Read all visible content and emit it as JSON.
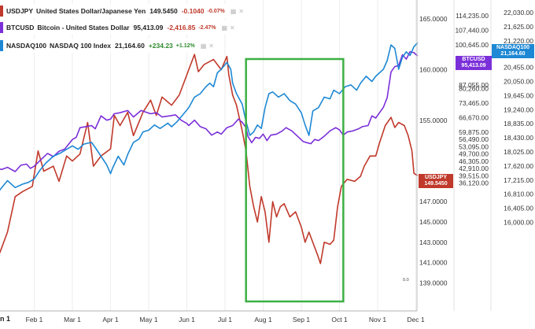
{
  "legend": [
    {
      "symbol": "USDJPY",
      "name": "United States Dollar/Japanese Yen",
      "last": "149.5450",
      "change": "-0.1040",
      "change_pct": "-0.07%",
      "color": "#c0392b"
    },
    {
      "symbol": "BTCUSD",
      "name": "Bitcoin - United States Dollar",
      "last": "95,413.09",
      "change": "-2,416.85",
      "change_pct": "-2.47%",
      "color": "#7b2fd9"
    },
    {
      "symbol": "NASDAQ100",
      "name": "NASDAQ 100 Index",
      "last": "21,164.60",
      "change": "+234.23",
      "change_pct": "+1.12%",
      "color": "#1e88d4"
    }
  ],
  "tags": {
    "btc": {
      "l1": "BTCUSD",
      "l2": "95,413.09"
    },
    "ndx": {
      "l1": "NASDAQ100",
      "l2": "21,164.60"
    },
    "usd": {
      "l1": "USDJPY",
      "l2": "149.5450"
    }
  },
  "misc": {
    "corner_label": "n 1",
    "zero_label": "0.0"
  },
  "colors": {
    "usd": "#c0392b",
    "btc": "#7b2fd9",
    "ndx": "#1e88d4",
    "box": "#3cb043"
  },
  "chart_data": {
    "type": "line",
    "x_ticks": [
      "Feb 1",
      "Mar 1",
      "Apr 1",
      "May 1",
      "Jun 1",
      "Jul 1",
      "Aug 1",
      "Sep 1",
      "Oct 1",
      "Nov 1",
      "Dec 1"
    ],
    "usdjpy_axis": {
      "ticks": [
        "165.0000",
        "160.0000",
        "155.0000",
        "147.0000",
        "145.0000",
        "143.0000",
        "141.0000",
        "139.0000"
      ]
    },
    "btc_axis": {
      "ticks": [
        "114,235.00",
        "107,440.00",
        "100,645.00",
        "80,260.00",
        "73,465.00",
        "66,670.00",
        "59,875.00",
        "56,490.00",
        "53,095.00",
        "49,700.00",
        "46,305.00",
        "42,910.00",
        "39,515.00",
        "36,120.00"
      ],
      "partial_tick": "87,055.00"
    },
    "ndx_axis": {
      "ticks": [
        "22,030.00",
        "21,625.00",
        "21,220.00",
        "20,860.00",
        "20,455.00",
        "20,050.00",
        "19,645.00",
        "19,240.00",
        "18,835.00",
        "18,430.00",
        "18,025.00",
        "17,620.00",
        "17,215.00",
        "16,810.00",
        "16,405.00",
        "16,000.00"
      ]
    },
    "series": [
      {
        "name": "USDJPY",
        "color": "#c0392b",
        "values": [
          [
            0,
            141
          ],
          [
            0.15,
            142.5
          ],
          [
            0.3,
            144
          ],
          [
            0.5,
            147.5
          ],
          [
            0.7,
            148
          ],
          [
            0.95,
            148.5
          ],
          [
            1.1,
            152
          ],
          [
            1.25,
            150
          ],
          [
            1.5,
            150.5
          ],
          [
            1.65,
            149
          ],
          [
            1.85,
            151.5
          ],
          [
            2.0,
            151
          ],
          [
            2.2,
            151.7
          ],
          [
            2.4,
            154.8
          ],
          [
            2.55,
            150.5
          ],
          [
            2.75,
            151.5
          ],
          [
            3.0,
            152.2
          ],
          [
            3.1,
            155.5
          ],
          [
            3.25,
            154.5
          ],
          [
            3.45,
            155.8
          ],
          [
            3.6,
            153.5
          ],
          [
            3.85,
            155.8
          ],
          [
            4.05,
            157
          ],
          [
            4.2,
            155.5
          ],
          [
            4.35,
            157.3
          ],
          [
            4.6,
            156.5
          ],
          [
            4.8,
            157.5
          ],
          [
            5.0,
            159.5
          ],
          [
            5.1,
            160.5
          ],
          [
            5.2,
            161.5
          ],
          [
            5.3,
            159.8
          ],
          [
            5.45,
            160.5
          ],
          [
            5.7,
            161
          ],
          [
            5.9,
            160
          ],
          [
            6.05,
            161.3
          ],
          [
            6.1,
            159.5
          ],
          [
            6.2,
            157.5
          ],
          [
            6.3,
            156.5
          ],
          [
            6.45,
            154
          ],
          [
            6.55,
            152
          ],
          [
            6.65,
            148.5
          ],
          [
            6.75,
            146.5
          ],
          [
            6.85,
            145
          ],
          [
            6.95,
            147.5
          ],
          [
            7.05,
            146
          ],
          [
            7.15,
            143
          ],
          [
            7.25,
            147
          ],
          [
            7.35,
            145.5
          ],
          [
            7.45,
            146.5
          ],
          [
            7.55,
            146.8
          ],
          [
            7.7,
            145.5
          ],
          [
            7.85,
            146
          ],
          [
            8.0,
            144.5
          ],
          [
            8.1,
            143
          ],
          [
            8.2,
            144
          ],
          [
            8.35,
            142.5
          ],
          [
            8.45,
            141.5
          ],
          [
            8.5,
            140.9
          ],
          [
            8.6,
            143
          ],
          [
            8.75,
            142.8
          ],
          [
            8.85,
            143.2
          ],
          [
            8.95,
            146.5
          ],
          [
            9.05,
            148.5
          ],
          [
            9.2,
            149.2
          ],
          [
            9.4,
            149
          ],
          [
            9.55,
            149.5
          ],
          [
            9.65,
            150.5
          ],
          [
            9.8,
            151.5
          ],
          [
            9.95,
            151.5
          ],
          [
            10.05,
            152.8
          ],
          [
            10.2,
            154.5
          ],
          [
            10.35,
            155.3
          ],
          [
            10.45,
            154.3
          ],
          [
            10.55,
            154.8
          ],
          [
            10.7,
            154.5
          ],
          [
            10.8,
            153.5
          ],
          [
            10.9,
            152
          ],
          [
            10.95,
            149.8
          ],
          [
            11.05,
            149.55
          ]
        ]
      },
      {
        "name": "BTCUSD",
        "color": "#7b2fd9",
        "values": [
          [
            0,
            43000
          ],
          [
            0.15,
            42500
          ],
          [
            0.3,
            43500
          ],
          [
            0.5,
            41500
          ],
          [
            0.65,
            44500
          ],
          [
            0.8,
            45000
          ],
          [
            0.9,
            43000
          ],
          [
            1.0,
            44000
          ],
          [
            1.2,
            47500
          ],
          [
            1.35,
            50000
          ],
          [
            1.5,
            48500
          ],
          [
            1.65,
            51000
          ],
          [
            1.8,
            52000
          ],
          [
            2.0,
            56500
          ],
          [
            2.1,
            57500
          ],
          [
            2.2,
            62000
          ],
          [
            2.35,
            62500
          ],
          [
            2.5,
            63000
          ],
          [
            2.6,
            61500
          ],
          [
            2.75,
            67500
          ],
          [
            2.9,
            65500
          ],
          [
            3.0,
            66000
          ],
          [
            3.1,
            68500
          ],
          [
            3.25,
            69000
          ],
          [
            3.45,
            70000
          ],
          [
            3.6,
            67000
          ],
          [
            3.8,
            70000
          ],
          [
            4.05,
            68500
          ],
          [
            4.2,
            69000
          ],
          [
            4.35,
            67000
          ],
          [
            4.55,
            67500
          ],
          [
            4.7,
            68000
          ],
          [
            4.85,
            65500
          ],
          [
            5.0,
            64000
          ],
          [
            5.05,
            63000
          ],
          [
            5.2,
            65500
          ],
          [
            5.35,
            62500
          ],
          [
            5.5,
            61500
          ],
          [
            5.65,
            58500
          ],
          [
            5.8,
            60000
          ],
          [
            5.9,
            59000
          ],
          [
            6.05,
            62000
          ],
          [
            6.2,
            63000
          ],
          [
            6.35,
            66000
          ],
          [
            6.45,
            64500
          ],
          [
            6.55,
            62000
          ],
          [
            6.6,
            58000
          ],
          [
            6.7,
            55000
          ],
          [
            6.8,
            57500
          ],
          [
            6.9,
            57000
          ],
          [
            7.0,
            59000
          ],
          [
            7.1,
            56000
          ],
          [
            7.2,
            58500
          ],
          [
            7.35,
            59000
          ],
          [
            7.5,
            60500
          ],
          [
            7.6,
            62000
          ],
          [
            7.75,
            60500
          ],
          [
            7.9,
            58000
          ],
          [
            8.05,
            55500
          ],
          [
            8.15,
            55000
          ],
          [
            8.25,
            54500
          ],
          [
            8.35,
            56500
          ],
          [
            8.45,
            56000
          ],
          [
            8.6,
            58000
          ],
          [
            8.75,
            60500
          ],
          [
            8.9,
            62000
          ],
          [
            9.0,
            61000
          ],
          [
            9.1,
            58500
          ],
          [
            9.2,
            60000
          ],
          [
            9.35,
            60500
          ],
          [
            9.5,
            61500
          ],
          [
            9.6,
            62500
          ],
          [
            9.75,
            63000
          ],
          [
            9.85,
            67500
          ],
          [
            9.95,
            66500
          ],
          [
            10.05,
            69000
          ],
          [
            10.15,
            71500
          ],
          [
            10.25,
            76000
          ],
          [
            10.35,
            88000
          ],
          [
            10.45,
            90500
          ],
          [
            10.55,
            91000
          ],
          [
            10.65,
            96000
          ],
          [
            10.75,
            94000
          ],
          [
            10.85,
            97500
          ],
          [
            10.95,
            97000
          ],
          [
            11.05,
            95413
          ]
        ]
      },
      {
        "name": "NASDAQ100",
        "color": "#1e88d4",
        "values": [
          [
            0,
            16800
          ],
          [
            0.15,
            17000
          ],
          [
            0.3,
            17200
          ],
          [
            0.5,
            17000
          ],
          [
            0.7,
            17100
          ],
          [
            0.85,
            17150
          ],
          [
            1.0,
            17250
          ],
          [
            1.15,
            17500
          ],
          [
            1.3,
            17700
          ],
          [
            1.5,
            17900
          ],
          [
            1.7,
            18000
          ],
          [
            1.85,
            18100
          ],
          [
            2.0,
            18200
          ],
          [
            2.15,
            18100
          ],
          [
            2.3,
            18250
          ],
          [
            2.5,
            18300
          ],
          [
            2.6,
            18150
          ],
          [
            2.75,
            17900
          ],
          [
            2.9,
            17650
          ],
          [
            3.0,
            17400
          ],
          [
            3.05,
            17550
          ],
          [
            3.2,
            17900
          ],
          [
            3.35,
            17650
          ],
          [
            3.45,
            17950
          ],
          [
            3.6,
            18300
          ],
          [
            3.75,
            18400
          ],
          [
            3.85,
            18600
          ],
          [
            4.0,
            18650
          ],
          [
            4.15,
            18800
          ],
          [
            4.3,
            18700
          ],
          [
            4.5,
            18850
          ],
          [
            4.6,
            18750
          ],
          [
            4.75,
            18900
          ],
          [
            4.9,
            19100
          ],
          [
            5.05,
            19300
          ],
          [
            5.2,
            19600
          ],
          [
            5.35,
            19700
          ],
          [
            5.5,
            19900
          ],
          [
            5.6,
            20000
          ],
          [
            5.7,
            19900
          ],
          [
            5.8,
            20300
          ],
          [
            5.9,
            20400
          ],
          [
            6.05,
            20600
          ],
          [
            6.15,
            20400
          ],
          [
            6.2,
            20000
          ],
          [
            6.3,
            19700
          ],
          [
            6.45,
            19400
          ],
          [
            6.55,
            18900
          ],
          [
            6.65,
            18500
          ],
          [
            6.75,
            18600
          ],
          [
            6.85,
            18800
          ],
          [
            6.95,
            18700
          ],
          [
            7.05,
            19300
          ],
          [
            7.15,
            19700
          ],
          [
            7.25,
            19750
          ],
          [
            7.4,
            19600
          ],
          [
            7.55,
            19700
          ],
          [
            7.7,
            19500
          ],
          [
            7.85,
            19400
          ],
          [
            8.0,
            19150
          ],
          [
            8.1,
            18800
          ],
          [
            8.2,
            18500
          ],
          [
            8.3,
            19200
          ],
          [
            8.45,
            19300
          ],
          [
            8.6,
            19600
          ],
          [
            8.75,
            19550
          ],
          [
            8.85,
            19800
          ],
          [
            9.0,
            19700
          ],
          [
            9.15,
            19900
          ],
          [
            9.3,
            19950
          ],
          [
            9.45,
            19800
          ],
          [
            9.55,
            20000
          ],
          [
            9.7,
            20200
          ],
          [
            9.85,
            20050
          ],
          [
            9.95,
            20200
          ],
          [
            10.05,
            20300
          ],
          [
            10.15,
            20400
          ],
          [
            10.25,
            20650
          ],
          [
            10.35,
            21100
          ],
          [
            10.45,
            21000
          ],
          [
            10.55,
            20400
          ],
          [
            10.65,
            20750
          ],
          [
            10.75,
            20900
          ],
          [
            10.85,
            20800
          ],
          [
            10.95,
            21050
          ],
          [
            11.05,
            21164.6
          ]
        ]
      }
    ],
    "highlight_box": {
      "x_from": 6.55,
      "x_to": 9.1
    }
  }
}
